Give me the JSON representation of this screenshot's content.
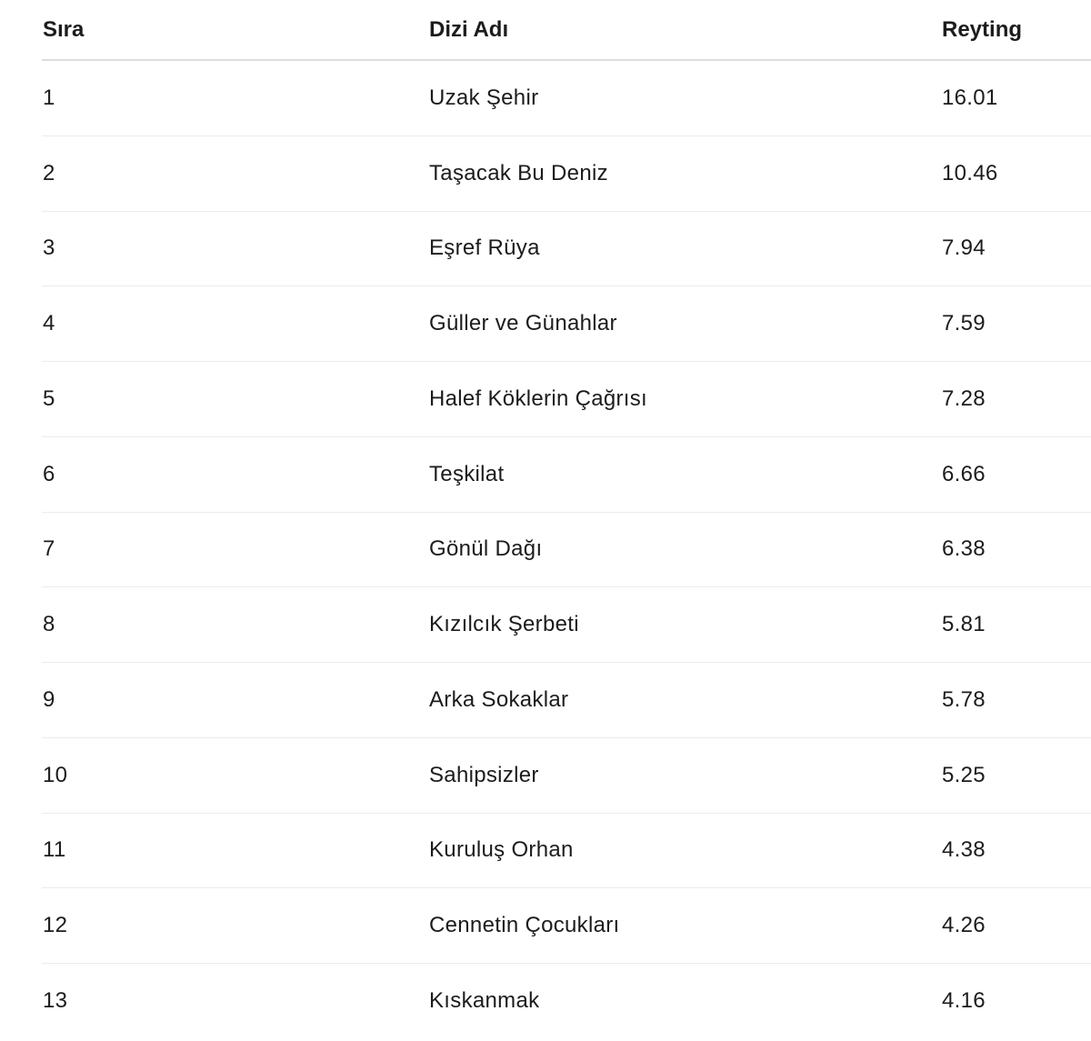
{
  "table": {
    "headers": [
      "Sıra",
      "Dizi Adı",
      "Reyting"
    ],
    "rows": [
      [
        "1",
        "Uzak Şehir",
        "16.01"
      ],
      [
        "2",
        "Taşacak Bu Deniz",
        "10.46"
      ],
      [
        "3",
        "Eşref Rüya",
        "7.94"
      ],
      [
        "4",
        "Güller ve Günahlar",
        "7.59"
      ],
      [
        "5",
        "Halef Köklerin Çağrısı",
        "7.28"
      ],
      [
        "6",
        "Teşkilat",
        "6.66"
      ],
      [
        "7",
        "Gönül Dağı",
        "6.38"
      ],
      [
        "8",
        "Kızılcık Şerbeti",
        "5.81"
      ],
      [
        "9",
        "Arka Sokaklar",
        "5.78"
      ],
      [
        "10",
        "Sahipsizler",
        "5.25"
      ],
      [
        "11",
        "Kuruluş Orhan",
        "4.38"
      ],
      [
        "12",
        "Cennetin Çocukları",
        "4.26"
      ],
      [
        "13",
        "Kıskanmak",
        "4.16"
      ]
    ]
  }
}
